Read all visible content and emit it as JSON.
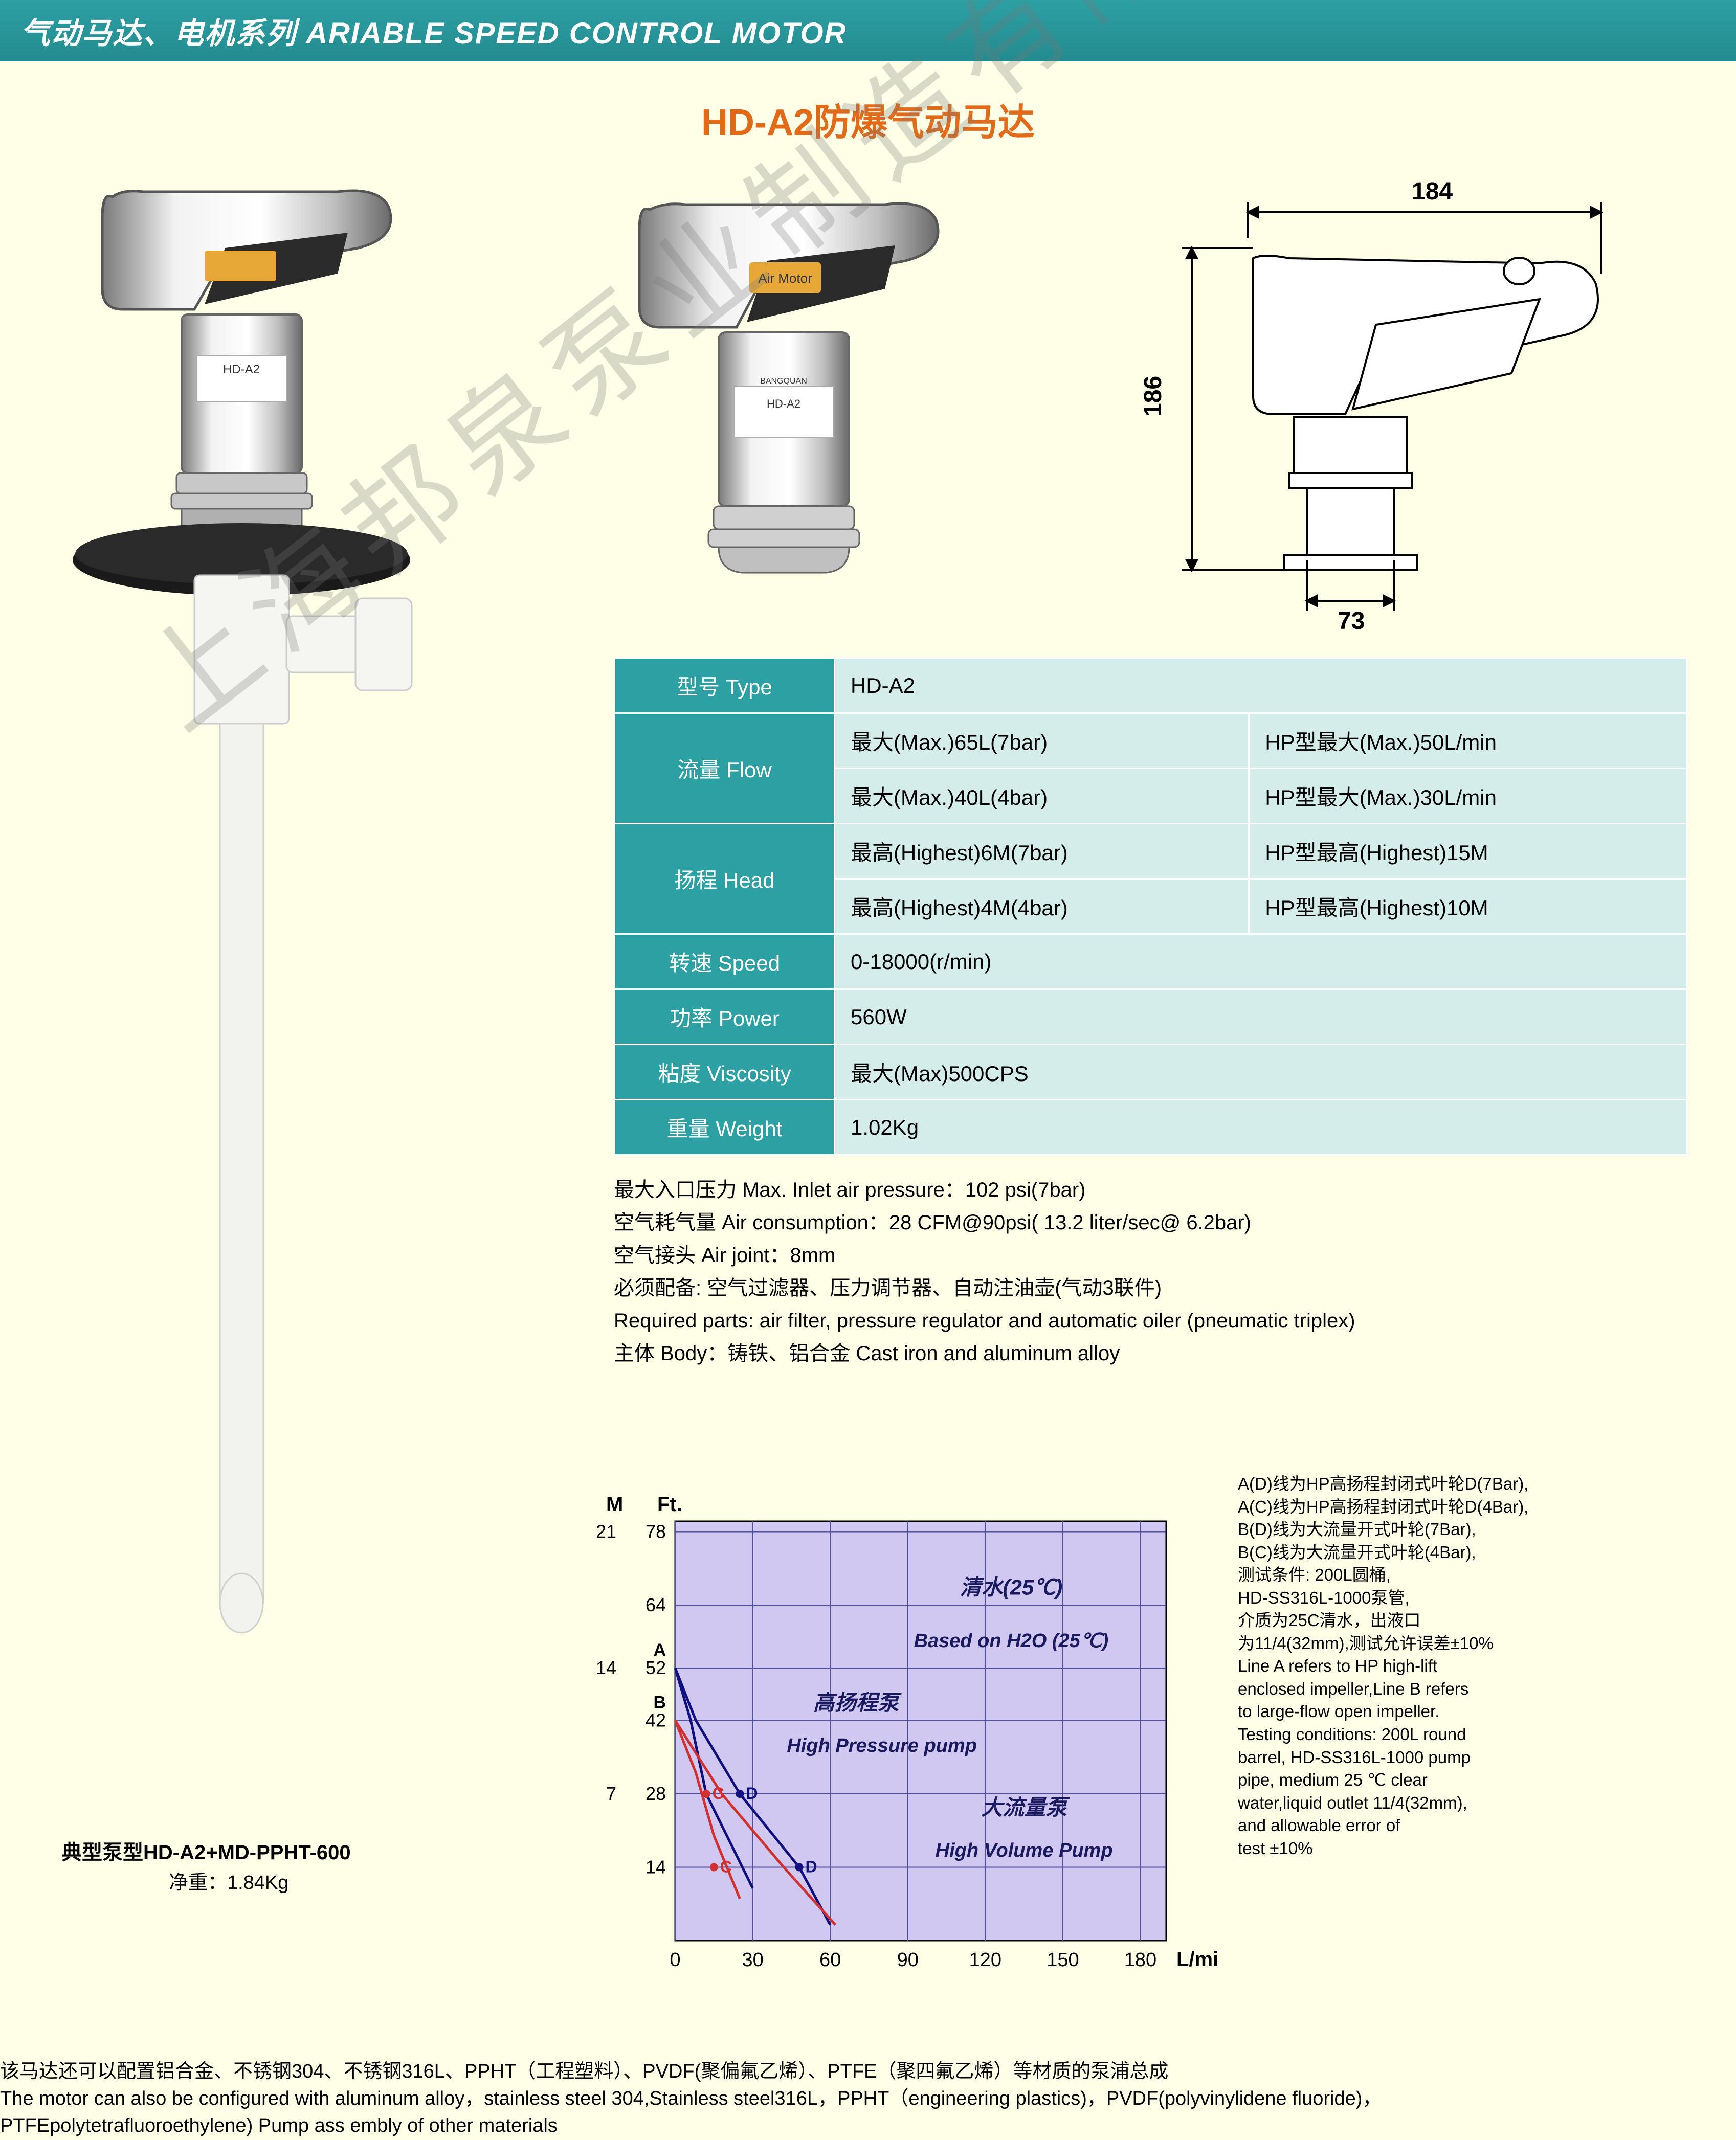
{
  "header": {
    "title": "气动马达、电机系列  ARIABLE SPEED CONTROL MOTOR"
  },
  "main_title": "HD-A2防爆气动马达",
  "dimensions": {
    "width": "184",
    "height": "186",
    "base": "73"
  },
  "spec_table": {
    "rows": [
      {
        "label": "型号 Type",
        "value": "HD-A2",
        "span2": true
      },
      {
        "label": "流量 Flow",
        "value1": "最大(Max.)65L(7bar)",
        "value2": "HP型最大(Max.)50L/min"
      },
      {
        "label": "",
        "value1": "最大(Max.)40L(4bar)",
        "value2": "HP型最大(Max.)30L/min"
      },
      {
        "label": "扬程 Head",
        "value1": "最高(Highest)6M(7bar)",
        "value2": "HP型最高(Highest)15M"
      },
      {
        "label": "",
        "value1": "最高(Highest)4M(4bar)",
        "value2": "HP型最高(Highest)10M"
      },
      {
        "label": "转速 Speed",
        "value": "0-18000(r/min)",
        "span2": true
      },
      {
        "label": "功率 Power",
        "value": "560W",
        "span2": true
      },
      {
        "label": "粘度 Viscosity",
        "value": "最大(Max)500CPS",
        "span2": true
      },
      {
        "label": "重量 Weight",
        "value": "1.02Kg",
        "span2": true
      }
    ]
  },
  "notes": [
    "最大入口压力 Max. Inlet air pressure：102 psi(7bar)",
    "空气耗气量 Air consumption：28 CFM@90psi( 13.2 liter/sec@ 6.2bar)",
    "空气接头 Air joint：8mm",
    "必须配备: 空气过滤器、压力调节器、自动注油壶(气动3联件)",
    "Required parts: air filter, pressure regulator and automatic oiler (pneumatic triplex)",
    "主体  Body：铸铁、铝合金  Cast iron and aluminum alloy"
  ],
  "chart": {
    "type": "line",
    "xlabel_unit": "L/min",
    "ylabel_m": "M",
    "ylabel_ft": "Ft.",
    "title_cn": "清水(25℃)",
    "title_en": "Based on H2O (25℃)",
    "label_hp_cn": "高扬程泵",
    "label_hp_en": "High Pressure pump",
    "label_hv_cn": "大流量泵",
    "label_hv_en": "High Volume Pump",
    "xlim": [
      0,
      190
    ],
    "ylim_ft": [
      0,
      80
    ],
    "xticks": [
      0,
      30,
      60,
      90,
      120,
      150,
      180
    ],
    "yticks_ft": [
      14,
      28,
      42,
      52,
      64,
      78
    ],
    "yticks_m": [
      7,
      14,
      21
    ],
    "y_extra_labels": [
      "A",
      "B",
      "C",
      "D"
    ],
    "y_extra_pos_ft": [
      52,
      42,
      28,
      14
    ],
    "background_color": "#d0c8f0",
    "grid_color": "#5050a0",
    "series": [
      {
        "name": "A-D",
        "color": "#101080",
        "points": [
          [
            0,
            52
          ],
          [
            8,
            42
          ],
          [
            25,
            28
          ],
          [
            48,
            14
          ],
          [
            60,
            3
          ]
        ]
      },
      {
        "name": "A-C",
        "color": "#101080",
        "points": [
          [
            0,
            52
          ],
          [
            6,
            42
          ],
          [
            12,
            28
          ],
          [
            20,
            20
          ],
          [
            30,
            10
          ]
        ]
      },
      {
        "name": "B-D",
        "color": "#d03030",
        "points": [
          [
            0,
            42
          ],
          [
            18,
            28
          ],
          [
            42,
            14
          ],
          [
            62,
            3
          ]
        ]
      },
      {
        "name": "B-C",
        "color": "#d03030",
        "points": [
          [
            0,
            42
          ],
          [
            8,
            32
          ],
          [
            15,
            20
          ],
          [
            25,
            8
          ]
        ]
      }
    ],
    "markers": [
      {
        "label": "D",
        "x": 25,
        "y": 28,
        "color": "#101080"
      },
      {
        "label": "C",
        "x": 12,
        "y": 28,
        "color": "#d03030"
      },
      {
        "label": "D",
        "x": 48,
        "y": 14,
        "color": "#101080"
      },
      {
        "label": "C",
        "x": 15,
        "y": 14,
        "color": "#d03030"
      }
    ],
    "line_width": 5
  },
  "legend_lines": [
    "A(D)线为HP高扬程封闭式叶轮D(7Bar),",
    "A(C)线为HP高扬程封闭式叶轮D(4Bar),",
    "B(D)线为大流量开式叶轮(7Bar),",
    "B(C)线为大流量开式叶轮(4Bar),",
    "测试条件: 200L圆桶,",
    "HD-SS316L-1000泵管,",
    "介质为25C清水，出液口",
    "为11/4(32mm),测试允许误差±10%",
    "Line A refers to HP high-lift",
    "enclosed impeller,Line B refers",
    "to large-flow open impeller.",
    "Testing conditions: 200L round",
    "barrel, HD-SS316L-1000 pump",
    "pipe, medium 25 ℃ clear",
    "water,liquid outlet 11/4(32mm),",
    "and allowable error of",
    "test ±10%"
  ],
  "model_caption": "典型泵型HD-A2+MD-PPHT-600",
  "net_weight": "净重：1.84Kg",
  "footer": [
    "该马达还可以配置铝合金、不锈钢304、不锈钢316L、PPHT（工程塑料）、PVDF(聚偏氟乙烯）、PTFE（聚四氟乙烯）等材质的泵浦总成",
    "The motor can also be configured with aluminum alloy，stainless steel 304,Stainless steel316L，PPHT（engineering plastics)，PVDF(polyvinylidene fluoride)，",
    "PTFEpolytetrafluoroethylene) Pump ass embly of other materials"
  ],
  "watermark": "上海邦泉泵业制造有限公司",
  "colors": {
    "accent": "#2da0a4",
    "title": "#e26b1a",
    "bg": "#ffffe8",
    "table_bg": "#d4edeb"
  }
}
